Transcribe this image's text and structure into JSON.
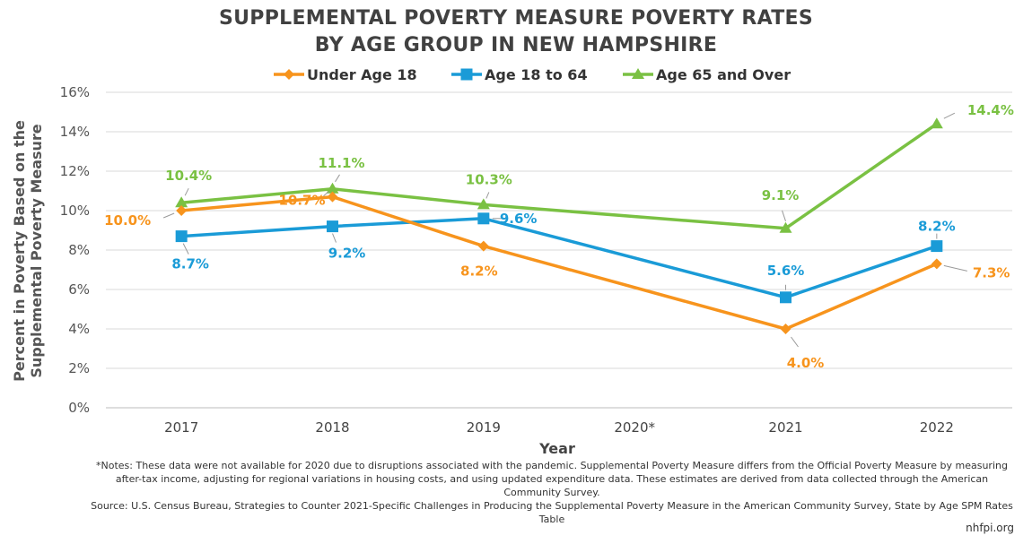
{
  "title_line1": "SUPPLEMENTAL POVERTY MEASURE POVERTY RATES",
  "title_line2": "BY AGE GROUP IN NEW HAMPSHIRE",
  "notes": "*Notes: These data were not available for 2020 due to disruptions associated with the pandemic. Supplemental Poverty Measure differs from the Official Poverty Measure by measuring after-tax income, adjusting for regional variations in housing costs, and using updated expenditure data. These estimates are derived from data collected through the American Community Survey.",
  "source": "Source: U.S. Census Bureau, Strategies to Counter 2021-Specific Challenges in Producing the Supplemental Poverty Measure in the American Community Survey, State by Age SPM Rates Table",
  "credit": "nhfpi.org",
  "chart_data": {
    "type": "line",
    "title": "SUPPLEMENTAL POVERTY MEASURE POVERTY RATES BY AGE GROUP IN NEW HAMPSHIRE",
    "xlabel": "Year",
    "ylabel": "Percent in Poverty Based on the Supplemental Poverty Measure",
    "ylabel_lines": [
      "Percent in Poverty Based on the",
      "Supplemental Poverty Measure"
    ],
    "categories": [
      "2017",
      "2018",
      "2019",
      "2020*",
      "2021",
      "2022"
    ],
    "ylim": [
      0,
      16
    ],
    "yticks": [
      0,
      2,
      4,
      6,
      8,
      10,
      12,
      14,
      16
    ],
    "ytick_labels": [
      "0%",
      "2%",
      "4%",
      "6%",
      "8%",
      "10%",
      "12%",
      "14%",
      "16%"
    ],
    "grid": true,
    "legend_position": "top",
    "series": [
      {
        "name": "Under Age 18",
        "color": "#F7941D",
        "marker": "diamond",
        "values": [
          10.0,
          10.7,
          8.2,
          null,
          4.0,
          7.3
        ],
        "labels": [
          "10.0%",
          "10.7%",
          "8.2%",
          "",
          "4.0%",
          "7.3%"
        ]
      },
      {
        "name": "Age 18 to 64",
        "color": "#1A9BD7",
        "marker": "square",
        "values": [
          8.7,
          9.2,
          9.6,
          null,
          5.6,
          8.2
        ],
        "labels": [
          "8.7%",
          "9.2%",
          "9.6%",
          "",
          "5.6%",
          "8.2%"
        ]
      },
      {
        "name": "Age 65 and Over",
        "color": "#7AC143",
        "marker": "triangle",
        "values": [
          10.4,
          11.1,
          10.3,
          null,
          9.1,
          14.4
        ],
        "labels": [
          "10.4%",
          "11.1%",
          "10.3%",
          "",
          "9.1%",
          "14.4%"
        ]
      }
    ]
  }
}
